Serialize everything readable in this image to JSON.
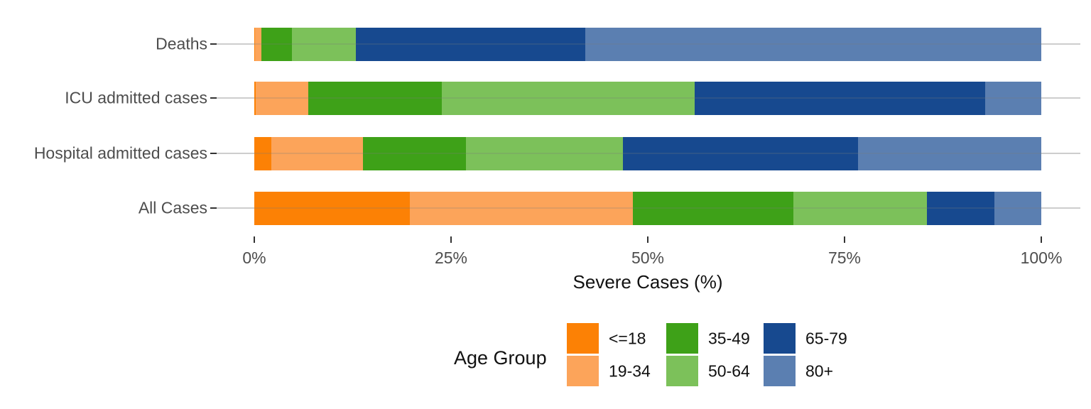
{
  "chart_data": {
    "type": "bar",
    "orientation": "horizontal",
    "stacked": true,
    "percent_scale": true,
    "xlabel": "Severe Cases (%)",
    "xlim": [
      0,
      100
    ],
    "x_ticks": [
      {
        "value": 0,
        "label": "0%"
      },
      {
        "value": 25,
        "label": "25%"
      },
      {
        "value": 50,
        "label": "50%"
      },
      {
        "value": 75,
        "label": "75%"
      },
      {
        "value": 100,
        "label": "100%"
      }
    ],
    "categories": [
      "Deaths",
      "ICU admitted cases",
      "Hospital admitted cases",
      "All Cases"
    ],
    "series": [
      {
        "name": "<=18",
        "color": "#FC8105",
        "values": [
          0.1,
          0.2,
          2.2,
          19.8
        ]
      },
      {
        "name": "19-34",
        "color": "#FCA45A",
        "values": [
          0.8,
          6.7,
          11.6,
          28.3
        ]
      },
      {
        "name": "35-49",
        "color": "#3EA118",
        "values": [
          3.9,
          16.9,
          13.1,
          20.4
        ]
      },
      {
        "name": "50-64",
        "color": "#7CC15A",
        "values": [
          8.1,
          32.2,
          19.9,
          17.0
        ]
      },
      {
        "name": "65-79",
        "color": "#17498F",
        "values": [
          29.2,
          36.9,
          29.9,
          8.5
        ]
      },
      {
        "name": "80+",
        "color": "#5B7FB1",
        "values": [
          57.9,
          7.1,
          23.3,
          6.0
        ]
      }
    ],
    "grid": "horizontal-major-only",
    "legend": {
      "title": "Age Group",
      "position": "bottom",
      "columns": [
        [
          "<=18",
          "19-34"
        ],
        [
          "35-49",
          "50-64"
        ],
        [
          "65-79",
          "80+"
        ]
      ]
    }
  }
}
